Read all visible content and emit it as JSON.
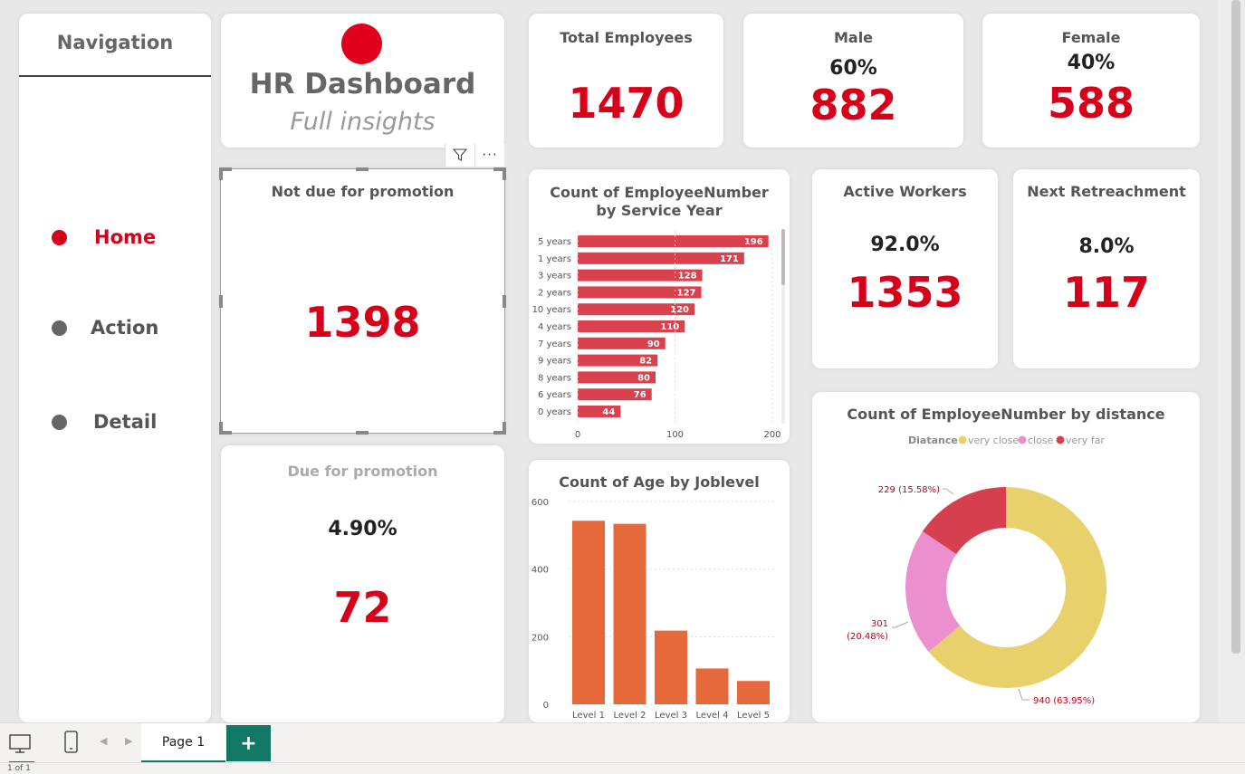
{
  "nav": {
    "title": "Navigation",
    "items": [
      {
        "label": "Home",
        "active": true
      },
      {
        "label": "Action",
        "active": false
      },
      {
        "label": "Detail",
        "active": false
      }
    ]
  },
  "header": {
    "title": "HR Dashboard",
    "subtitle": "Full insights"
  },
  "kpi": {
    "total": {
      "title": "Total Employees",
      "value": "1470"
    },
    "male": {
      "title": "Male",
      "pct": "60%",
      "value": "882"
    },
    "female": {
      "title": "Female",
      "pct": "40%",
      "value": "588"
    },
    "not_due": {
      "title": "Not due for promotion",
      "value": "1398"
    },
    "due": {
      "title": "Due for promotion",
      "pct": "4.90%",
      "value": "72"
    },
    "active": {
      "title": "Active Workers",
      "pct": "92.0%",
      "value": "1353"
    },
    "retrench": {
      "title": "Next Retreachment",
      "pct": "8.0%",
      "value": "117"
    }
  },
  "colors": {
    "accent": "#d7001b",
    "bar_service": "#d9414c",
    "bar_age": "#e5693a",
    "very_close": "#e8d06a",
    "close": "#ec8fce",
    "very_far": "#d6404e"
  },
  "chart_data": [
    {
      "type": "bar",
      "orientation": "horizontal",
      "title": "Count of EmployeeNumber by Service Year",
      "categories": [
        "5 years",
        "1 years",
        "3 years",
        "2 years",
        "10 years",
        "4 years",
        "7 years",
        "9 years",
        "8 years",
        "6 years",
        "0 years"
      ],
      "values": [
        196,
        171,
        128,
        127,
        120,
        110,
        90,
        82,
        80,
        76,
        44
      ],
      "xlim": [
        0,
        200
      ],
      "xticks": [
        "0",
        "100",
        "200"
      ]
    },
    {
      "type": "bar",
      "title": "Count of Age by Joblevel",
      "categories": [
        "Level 1",
        "Level 2",
        "Level 3",
        "Level 4",
        "Level 5"
      ],
      "values": [
        543,
        534,
        218,
        106,
        69
      ],
      "ylim": [
        0,
        600
      ],
      "yticks": [
        "0",
        "200",
        "400",
        "600"
      ]
    },
    {
      "type": "pie",
      "title": "Count of EmployeeNumber by distance",
      "legend_title": "Diatance",
      "legend_position": "top",
      "slices": [
        {
          "name": "very close",
          "value": 940,
          "label": "940 (63.95%)"
        },
        {
          "name": "close",
          "value": 301,
          "label_line1": "301",
          "label_line2": "(20.48%)"
        },
        {
          "name": "very far",
          "value": 229,
          "label": "229 (15.58%)"
        }
      ]
    }
  ],
  "footer": {
    "page_tab": "Page 1",
    "add": "+",
    "status": "1 of 1"
  }
}
